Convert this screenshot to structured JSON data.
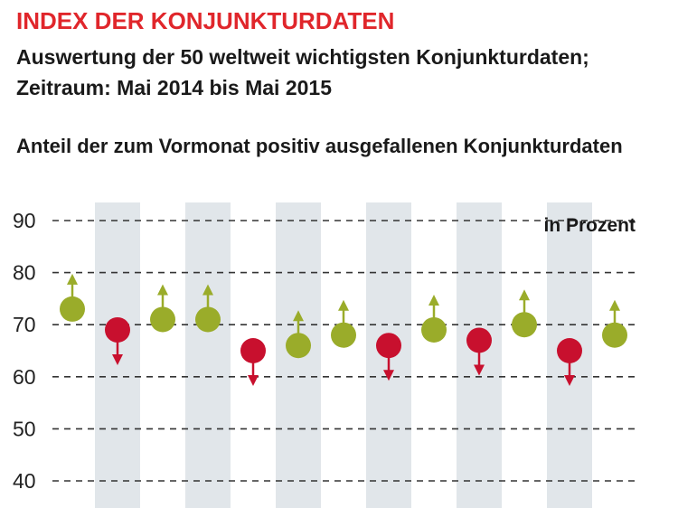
{
  "header": {
    "title": "INDEX DER KONJUNKTURDATEN",
    "subtitle_line1": "Auswertung der 50 weltweit wichtigsten Konjunkturdaten;",
    "subtitle_line2": "Zeitraum: Mai 2014 bis Mai 2015",
    "caption": "Anteil der zum Vormonat positiv ausgefallenen Konjunkturdaten"
  },
  "colors": {
    "up": "#9aac2a",
    "down": "#c8102e",
    "band": "#e1e6ea",
    "title": "#e0262b",
    "grid": "#333333"
  },
  "chart_data": {
    "type": "scatter",
    "unit_label": "in Prozent",
    "ylim": [
      40,
      90
    ],
    "yticks": [
      40,
      50,
      60,
      70,
      80,
      90
    ],
    "grid": true,
    "x": [
      1,
      2,
      3,
      4,
      5,
      6,
      7,
      8,
      9,
      10,
      11,
      12,
      13
    ],
    "values": [
      73,
      69,
      71,
      71,
      65,
      66,
      68,
      66,
      69,
      67,
      70,
      65,
      68
    ],
    "direction": [
      "up",
      "down",
      "up",
      "up",
      "down",
      "up",
      "up",
      "down",
      "up",
      "down",
      "up",
      "down",
      "up"
    ]
  }
}
